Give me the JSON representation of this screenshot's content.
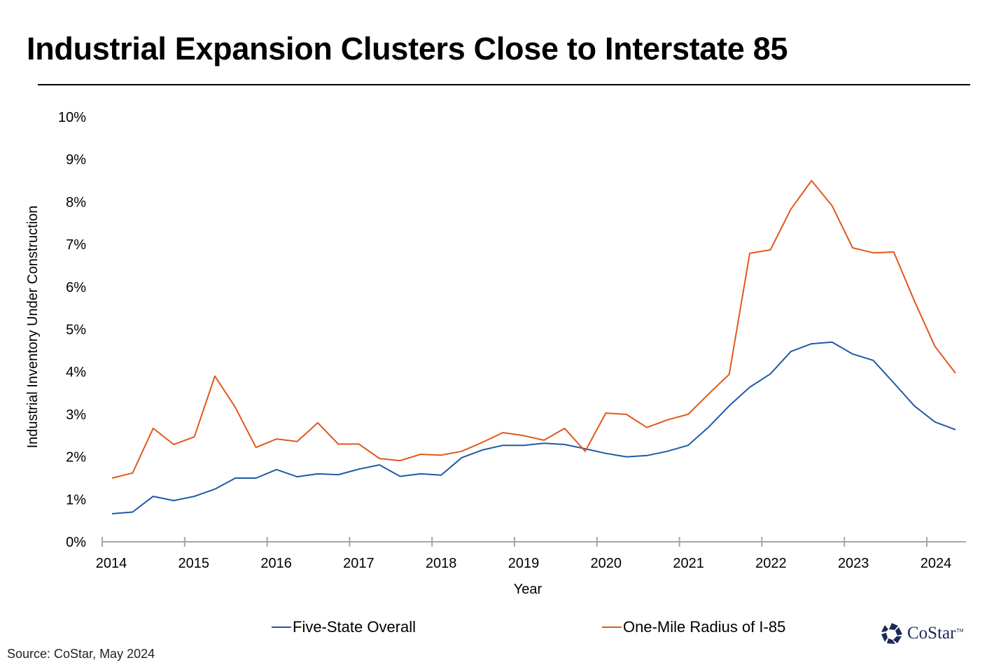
{
  "header": {
    "title": "Industrial Expansion Clusters Close to Interstate 85"
  },
  "footer": {
    "source": "Source: CoStar, May 2024",
    "logo_text": "CoStar",
    "logo_tm": "TM"
  },
  "colors": {
    "series_blue": "#1f5aa6",
    "series_orange": "#e0581c",
    "axis": "#a6a6a6"
  },
  "chart_data": {
    "type": "line",
    "title": "Industrial Expansion Clusters Close to Interstate 85",
    "xlabel": "Year",
    "ylabel": "Industrial Inventory Under Construction",
    "ylim": [
      0,
      10
    ],
    "yticks": [
      "0%",
      "1%",
      "2%",
      "3%",
      "4%",
      "5%",
      "6%",
      "7%",
      "8%",
      "9%",
      "10%"
    ],
    "xticks": [
      "2014",
      "2015",
      "2016",
      "2017",
      "2018",
      "2019",
      "2020",
      "2021",
      "2022",
      "2023",
      "2024"
    ],
    "x_period": "quarterly, 2014 Q1 through 2024 Q2",
    "x": [
      "2014 Q1",
      "2014 Q2",
      "2014 Q3",
      "2014 Q4",
      "2015 Q1",
      "2015 Q2",
      "2015 Q3",
      "2015 Q4",
      "2016 Q1",
      "2016 Q2",
      "2016 Q3",
      "2016 Q4",
      "2017 Q1",
      "2017 Q2",
      "2017 Q3",
      "2017 Q4",
      "2018 Q1",
      "2018 Q2",
      "2018 Q3",
      "2018 Q4",
      "2019 Q1",
      "2019 Q2",
      "2019 Q3",
      "2019 Q4",
      "2020 Q1",
      "2020 Q2",
      "2020 Q3",
      "2020 Q4",
      "2021 Q1",
      "2021 Q2",
      "2021 Q3",
      "2021 Q4",
      "2022 Q1",
      "2022 Q2",
      "2022 Q3",
      "2022 Q4",
      "2023 Q1",
      "2023 Q2",
      "2023 Q3",
      "2023 Q4",
      "2024 Q1",
      "2024 Q2"
    ],
    "grid": false,
    "legend_position": "bottom",
    "series": [
      {
        "name": "Five-State Overall",
        "color": "#1f5aa6",
        "values": [
          0.66,
          0.7,
          1.07,
          0.97,
          1.07,
          1.24,
          1.5,
          1.5,
          1.7,
          1.53,
          1.6,
          1.58,
          1.71,
          1.81,
          1.54,
          1.6,
          1.57,
          1.98,
          2.16,
          2.27,
          2.27,
          2.32,
          2.29,
          2.19,
          2.08,
          2.0,
          2.03,
          2.13,
          2.27,
          2.7,
          3.2,
          3.64,
          3.95,
          4.48,
          4.66,
          4.7,
          4.42,
          4.27,
          3.74,
          3.2,
          2.82,
          2.64
        ]
      },
      {
        "name": "One-Mile Radius of I-85",
        "color": "#e0581c",
        "values": [
          1.5,
          1.62,
          2.67,
          2.29,
          2.47,
          3.9,
          3.16,
          2.22,
          2.42,
          2.36,
          2.8,
          2.3,
          2.3,
          1.96,
          1.91,
          2.06,
          2.04,
          2.13,
          2.34,
          2.57,
          2.5,
          2.39,
          2.67,
          2.13,
          3.03,
          3.0,
          2.69,
          2.87,
          3.0,
          3.48,
          3.94,
          6.79,
          6.87,
          7.83,
          8.5,
          7.91,
          6.92,
          6.8,
          6.82,
          5.67,
          4.6,
          3.97
        ]
      }
    ]
  }
}
